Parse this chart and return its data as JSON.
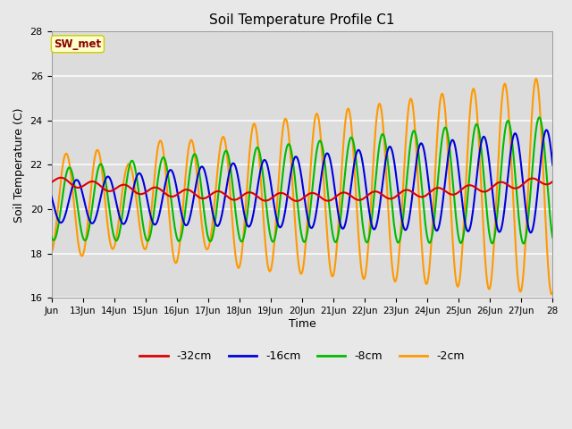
{
  "title": "Soil Temperature Profile C1",
  "xlabel": "Time",
  "ylabel": "Soil Temperature (C)",
  "ylim": [
    16,
    28
  ],
  "yticks": [
    16,
    18,
    20,
    22,
    24,
    26,
    28
  ],
  "fig_bg_color": "#e8e8e8",
  "plot_bg_color": "#dcdcdc",
  "grid_color": "#f5f5f5",
  "annotation_text": "SW_met",
  "annotation_bg": "#ffffcc",
  "annotation_border": "#cccc00",
  "annotation_fg": "#880000",
  "series": {
    "-32cm": {
      "color": "#dd0000",
      "lw": 1.5
    },
    "-16cm": {
      "color": "#0000dd",
      "lw": 1.5
    },
    "-8cm": {
      "color": "#00bb00",
      "lw": 1.5
    },
    "-2cm": {
      "color": "#ff9900",
      "lw": 1.5
    }
  },
  "x_start_day": 12,
  "x_end_day": 28,
  "xtick_labels": [
    "Jun",
    "13Jun",
    "14Jun",
    "15Jun",
    "16Jun",
    "17Jun",
    "18Jun",
    "19Jun",
    "20Jun",
    "21Jun",
    "22Jun",
    "23Jun",
    "24Jun",
    "25Jun",
    "26Jun",
    "27Jun",
    "28"
  ],
  "xtick_positions": [
    12,
    13,
    14,
    15,
    16,
    17,
    18,
    19,
    20,
    21,
    22,
    23,
    24,
    25,
    26,
    27,
    28
  ]
}
